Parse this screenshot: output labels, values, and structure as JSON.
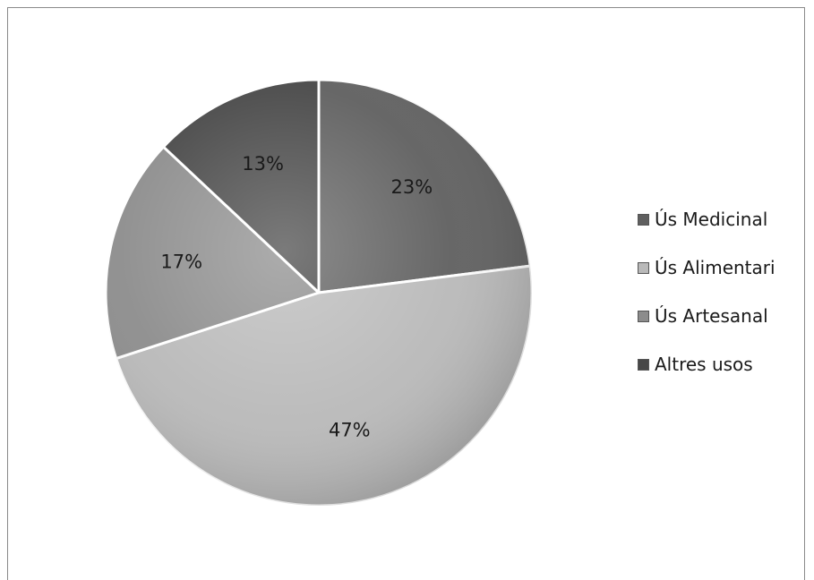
{
  "chart_data": {
    "type": "pie",
    "title": "",
    "slices": [
      {
        "name": "Ús Medicinal",
        "value": 23,
        "label": "23%",
        "color": "#5f5f5f"
      },
      {
        "name": "Ús Alimentari",
        "value": 47,
        "label": "47%",
        "color": "#b9b9b9"
      },
      {
        "name": "Ús Artesanal",
        "value": 17,
        "label": "17%",
        "color": "#8c8c8c"
      },
      {
        "name": "Altres usos",
        "value": 13,
        "label": "13%",
        "color": "#474747"
      }
    ],
    "legend_position": "right",
    "start": "top",
    "direction": "clockwise"
  }
}
